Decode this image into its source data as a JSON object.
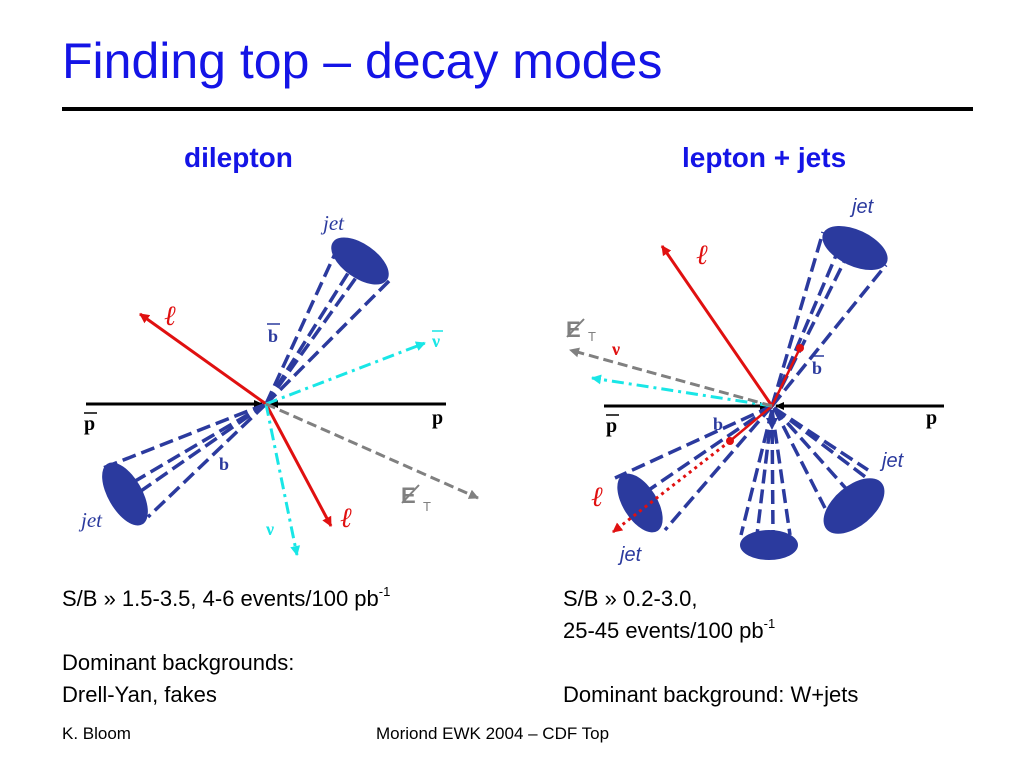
{
  "slide": {
    "title": "Finding top – decay modes",
    "left_heading": "dilepton",
    "right_heading": "lepton + jets"
  },
  "diagram_left": {
    "labels": {
      "jet_top": "jet",
      "jet_bottom": "jet",
      "lepton_top": "ℓ",
      "lepton_bottom": "ℓ",
      "bbar": "b",
      "b": "b",
      "nubar": "ν",
      "nu": "ν",
      "pbar": "p",
      "p": "p",
      "met_E": "E",
      "met_T": "T"
    }
  },
  "diagram_right": {
    "labels": {
      "jet_top": "jet",
      "jet_right": "jet",
      "jet_bottom": "jet",
      "lepton_top": "ℓ",
      "lepton_bottom": "ℓ",
      "bbar": "b",
      "b": "b",
      "nu": "ν",
      "pbar": "p",
      "p": "p",
      "met_E": "E",
      "met_T": "T"
    }
  },
  "left_text": {
    "line1_main": "S/B » 1.5-3.5, 4-6 events/100 pb",
    "line1_sup": "-1",
    "line3": "Dominant backgrounds:",
    "line4": "Drell-Yan, fakes"
  },
  "right_text": {
    "line1": "S/B » 0.2-3.0,",
    "line2_main": "25-45 events/100 pb",
    "line2_sup": "-1",
    "line4": "Dominant background: W+jets"
  },
  "footer": {
    "author": "K. Bloom",
    "conference": "Moriond EWK 2004 – CDF Top"
  },
  "colors": {
    "title_blue": "#1414e6",
    "jet_blue": "#2b3a9e",
    "lepton_red": "#e01010",
    "neutrino_cyan": "#19e6e6",
    "met_gray": "#808080"
  }
}
